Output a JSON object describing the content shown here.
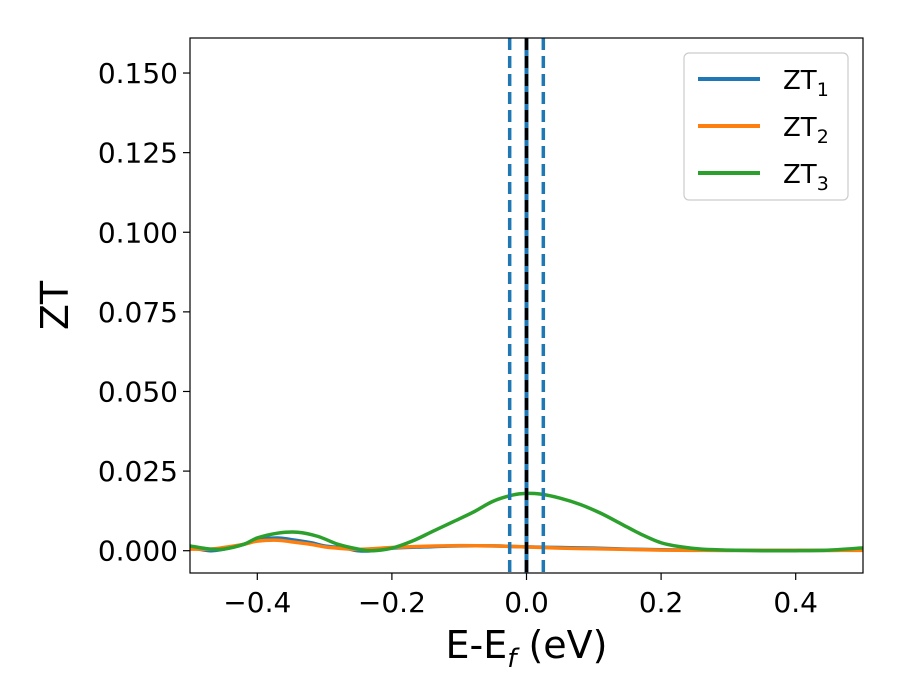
{
  "chart_data": {
    "type": "line",
    "xlabel": {
      "main": "E-E",
      "sub": "f",
      "unit": " (eV)"
    },
    "ylabel": "ZT",
    "xlim": [
      -0.5,
      0.5
    ],
    "ylim": [
      -0.007,
      0.161
    ],
    "xticks": [
      -0.4,
      -0.2,
      0.0,
      0.2,
      0.4
    ],
    "xtick_labels": [
      "−0.4",
      "−0.2",
      "0.0",
      "0.2",
      "0.4"
    ],
    "yticks": [
      0.0,
      0.025,
      0.05,
      0.075,
      0.1,
      0.125,
      0.15
    ],
    "ytick_labels": [
      "0.000",
      "0.025",
      "0.050",
      "0.075",
      "0.100",
      "0.125",
      "0.150"
    ],
    "grid": false,
    "legend_position": "top-right",
    "series": [
      {
        "name": "ZT",
        "sub": "1",
        "color": "#1f77b4",
        "x": [
          -0.5,
          -0.47,
          -0.45,
          -0.42,
          -0.4,
          -0.37,
          -0.35,
          -0.32,
          -0.3,
          -0.27,
          -0.25,
          -0.23,
          -0.2,
          -0.15,
          -0.1,
          -0.05,
          0.0,
          0.05,
          0.1,
          0.15,
          0.2,
          0.25,
          0.3,
          0.35,
          0.4,
          0.45,
          0.5
        ],
        "y": [
          0.001,
          0.0,
          0.0005,
          0.002,
          0.0035,
          0.004,
          0.0035,
          0.0025,
          0.0015,
          0.0008,
          0.0,
          0.0,
          0.0008,
          0.0012,
          0.0015,
          0.0015,
          0.0012,
          0.001,
          0.0008,
          0.0005,
          0.0003,
          0.0002,
          0.0001,
          0.0001,
          0.0001,
          0.0001,
          0.0002
        ]
      },
      {
        "name": "ZT",
        "sub": "2",
        "color": "#ff7f0e",
        "x": [
          -0.5,
          -0.47,
          -0.45,
          -0.42,
          -0.4,
          -0.37,
          -0.35,
          -0.32,
          -0.3,
          -0.27,
          -0.25,
          -0.23,
          -0.2,
          -0.15,
          -0.1,
          -0.05,
          0.0,
          0.05,
          0.1,
          0.15,
          0.2,
          0.25,
          0.3,
          0.35,
          0.4,
          0.45,
          0.5
        ],
        "y": [
          0.0005,
          0.0005,
          0.001,
          0.002,
          0.003,
          0.0033,
          0.0028,
          0.002,
          0.0012,
          0.0006,
          0.0004,
          0.0006,
          0.001,
          0.0014,
          0.0016,
          0.0015,
          0.0012,
          0.0008,
          0.0006,
          0.0004,
          0.0002,
          0.0001,
          0.0001,
          0.0001,
          0.0001,
          0.0001,
          0.0001
        ]
      },
      {
        "name": "ZT",
        "sub": "3",
        "color": "#2ca02c",
        "x": [
          -0.5,
          -0.47,
          -0.45,
          -0.42,
          -0.4,
          -0.37,
          -0.34,
          -0.31,
          -0.28,
          -0.25,
          -0.23,
          -0.2,
          -0.17,
          -0.14,
          -0.11,
          -0.08,
          -0.05,
          -0.02,
          0.0,
          0.02,
          0.05,
          0.08,
          0.11,
          0.14,
          0.17,
          0.2,
          0.23,
          0.26,
          0.3,
          0.35,
          0.4,
          0.45,
          0.5
        ],
        "y": [
          0.0015,
          0.0005,
          0.0005,
          0.002,
          0.004,
          0.0055,
          0.0058,
          0.0045,
          0.002,
          0.0005,
          0.0,
          0.0008,
          0.003,
          0.006,
          0.009,
          0.012,
          0.0155,
          0.0175,
          0.018,
          0.0178,
          0.0165,
          0.0145,
          0.0118,
          0.0085,
          0.0052,
          0.0025,
          0.0012,
          0.0005,
          0.0002,
          0.0,
          0.0,
          0.0002,
          0.0009
        ]
      }
    ],
    "vlines": [
      {
        "x": -0.025,
        "color": "#1f77b4",
        "style": "dashed"
      },
      {
        "x": 0.025,
        "color": "#1f77b4",
        "style": "dashed"
      },
      {
        "x": 0.0,
        "color": "#1f77b4",
        "style": "solid"
      },
      {
        "x": 0.0,
        "color": "#000000",
        "style": "dashed"
      }
    ]
  }
}
